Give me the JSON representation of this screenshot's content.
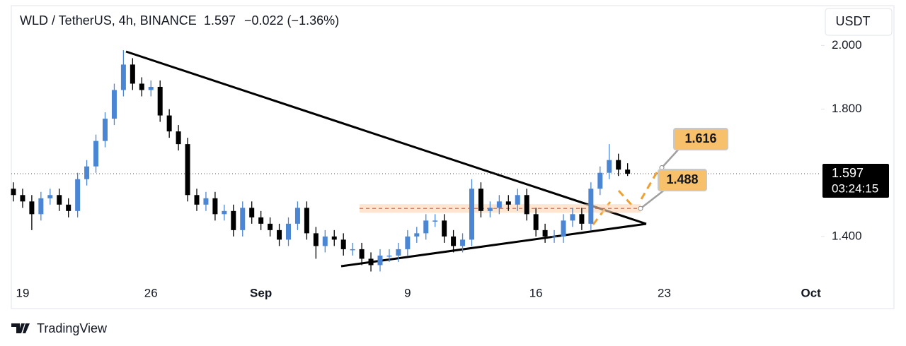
{
  "chart_data": {
    "type": "candlestick",
    "symbol": "WLD / TetherUS, 4h, BINANCE",
    "last_price": 1.597,
    "change": "−0.022 (−1.36%)",
    "currency": "USDT",
    "countdown": "03:24:15",
    "brand": "TradingView",
    "up_color": "#4a86d4",
    "down_color": "#000000",
    "ylim": [
      1.26,
      2.125
    ],
    "yticks": [
      {
        "value": 2.0,
        "label": "2.000"
      },
      {
        "value": 1.8,
        "label": "1.800"
      },
      {
        "value": 1.4,
        "label": "1.400"
      }
    ],
    "levels": [
      1.616,
      1.488
    ],
    "categories": [
      null,
      "19",
      null,
      null,
      null,
      null,
      null,
      null,
      null,
      null,
      null,
      null,
      null,
      null,
      null,
      "26",
      null,
      null,
      null,
      null,
      null,
      null,
      null,
      null,
      null,
      null,
      null,
      "Sep",
      null,
      null,
      null,
      null,
      null,
      null,
      null,
      null,
      null,
      null,
      null,
      null,
      null,
      null,
      null,
      "9",
      null,
      null,
      null,
      null,
      null,
      null,
      null,
      null,
      null,
      null,
      null,
      null,
      null,
      "16",
      null,
      null,
      null,
      null,
      null,
      null,
      null,
      null,
      null,
      null,
      null,
      null,
      null,
      "23",
      null,
      null,
      null,
      null,
      null,
      null,
      null,
      null,
      null,
      null,
      null,
      null,
      null,
      null,
      null,
      "Oct"
    ],
    "open": [
      1.55,
      1.53,
      1.51,
      1.47,
      1.52,
      1.53,
      1.5,
      1.48,
      1.58,
      1.62,
      1.7,
      1.77,
      1.86,
      1.94,
      1.88,
      1.86,
      1.87,
      1.78,
      1.73,
      1.69,
      1.53,
      1.5,
      1.52,
      1.47,
      1.48,
      1.42,
      1.49,
      1.46,
      1.44,
      1.42,
      1.39,
      1.44,
      1.49,
      1.41,
      1.37,
      1.4,
      1.39,
      1.36,
      1.36,
      1.33,
      1.31,
      1.34,
      1.34,
      1.36,
      1.4,
      1.41,
      1.45,
      1.45,
      1.4,
      1.37,
      1.39,
      1.55,
      1.48,
      1.49,
      1.51,
      1.5,
      1.53,
      1.47,
      1.42,
      1.4,
      1.4,
      1.45,
      1.47,
      1.44,
      1.55,
      1.6,
      1.64,
      1.61,
      null,
      null,
      null,
      null,
      null,
      null,
      null,
      null,
      null,
      null,
      null,
      null,
      null,
      null,
      null,
      null,
      null,
      null,
      null,
      null
    ],
    "high": [
      1.57,
      1.55,
      1.53,
      1.54,
      1.55,
      1.55,
      1.52,
      1.6,
      1.64,
      1.72,
      1.79,
      1.88,
      1.985,
      1.96,
      1.9,
      1.89,
      1.89,
      1.8,
      1.75,
      1.71,
      1.55,
      1.54,
      1.54,
      1.5,
      1.5,
      1.51,
      1.51,
      1.48,
      1.46,
      1.44,
      1.46,
      1.51,
      1.51,
      1.43,
      1.42,
      1.42,
      1.41,
      1.38,
      1.38,
      1.35,
      1.36,
      1.36,
      1.38,
      1.42,
      1.43,
      1.47,
      1.47,
      1.47,
      1.42,
      1.41,
      1.58,
      1.57,
      1.51,
      1.53,
      1.53,
      1.55,
      1.55,
      1.49,
      1.44,
      1.42,
      1.47,
      1.49,
      1.49,
      1.57,
      1.62,
      1.69,
      1.66,
      1.63,
      null,
      null,
      null,
      null,
      null,
      null,
      null,
      null,
      null,
      null,
      null,
      null,
      null,
      null,
      null,
      null,
      null,
      null,
      null,
      null
    ],
    "low": [
      1.51,
      1.49,
      1.42,
      1.45,
      1.5,
      1.48,
      1.46,
      1.46,
      1.56,
      1.6,
      1.68,
      1.75,
      1.84,
      1.86,
      1.84,
      1.84,
      1.76,
      1.71,
      1.67,
      1.51,
      1.48,
      1.48,
      1.45,
      1.45,
      1.4,
      1.4,
      1.44,
      1.42,
      1.4,
      1.37,
      1.37,
      1.42,
      1.39,
      1.33,
      1.35,
      1.37,
      1.34,
      1.34,
      1.31,
      1.29,
      1.29,
      1.32,
      1.32,
      1.34,
      1.38,
      1.39,
      1.43,
      1.38,
      1.35,
      1.35,
      1.37,
      1.46,
      1.46,
      1.47,
      1.48,
      1.48,
      1.45,
      1.4,
      1.38,
      1.38,
      1.38,
      1.43,
      1.42,
      1.42,
      1.53,
      1.58,
      1.59,
      1.59,
      null,
      null,
      null,
      null,
      null,
      null,
      null,
      null,
      null,
      null,
      null,
      null,
      null,
      null,
      null,
      null,
      null,
      null,
      null,
      null
    ],
    "close": [
      1.53,
      1.51,
      1.47,
      1.52,
      1.53,
      1.5,
      1.48,
      1.58,
      1.62,
      1.7,
      1.77,
      1.86,
      1.94,
      1.88,
      1.86,
      1.87,
      1.78,
      1.73,
      1.69,
      1.53,
      1.5,
      1.52,
      1.47,
      1.48,
      1.42,
      1.49,
      1.46,
      1.44,
      1.42,
      1.39,
      1.44,
      1.49,
      1.41,
      1.37,
      1.4,
      1.39,
      1.36,
      1.36,
      1.33,
      1.31,
      1.34,
      1.34,
      1.36,
      1.4,
      1.41,
      1.45,
      1.45,
      1.4,
      1.37,
      1.39,
      1.55,
      1.48,
      1.49,
      1.51,
      1.5,
      1.53,
      1.47,
      1.42,
      1.4,
      1.4,
      1.45,
      1.47,
      1.44,
      1.55,
      1.6,
      1.64,
      1.61,
      1.597,
      null,
      null,
      null,
      null,
      null,
      null,
      null,
      null,
      null,
      null,
      null,
      null,
      null,
      null,
      null,
      null,
      null,
      null,
      null,
      null
    ]
  }
}
